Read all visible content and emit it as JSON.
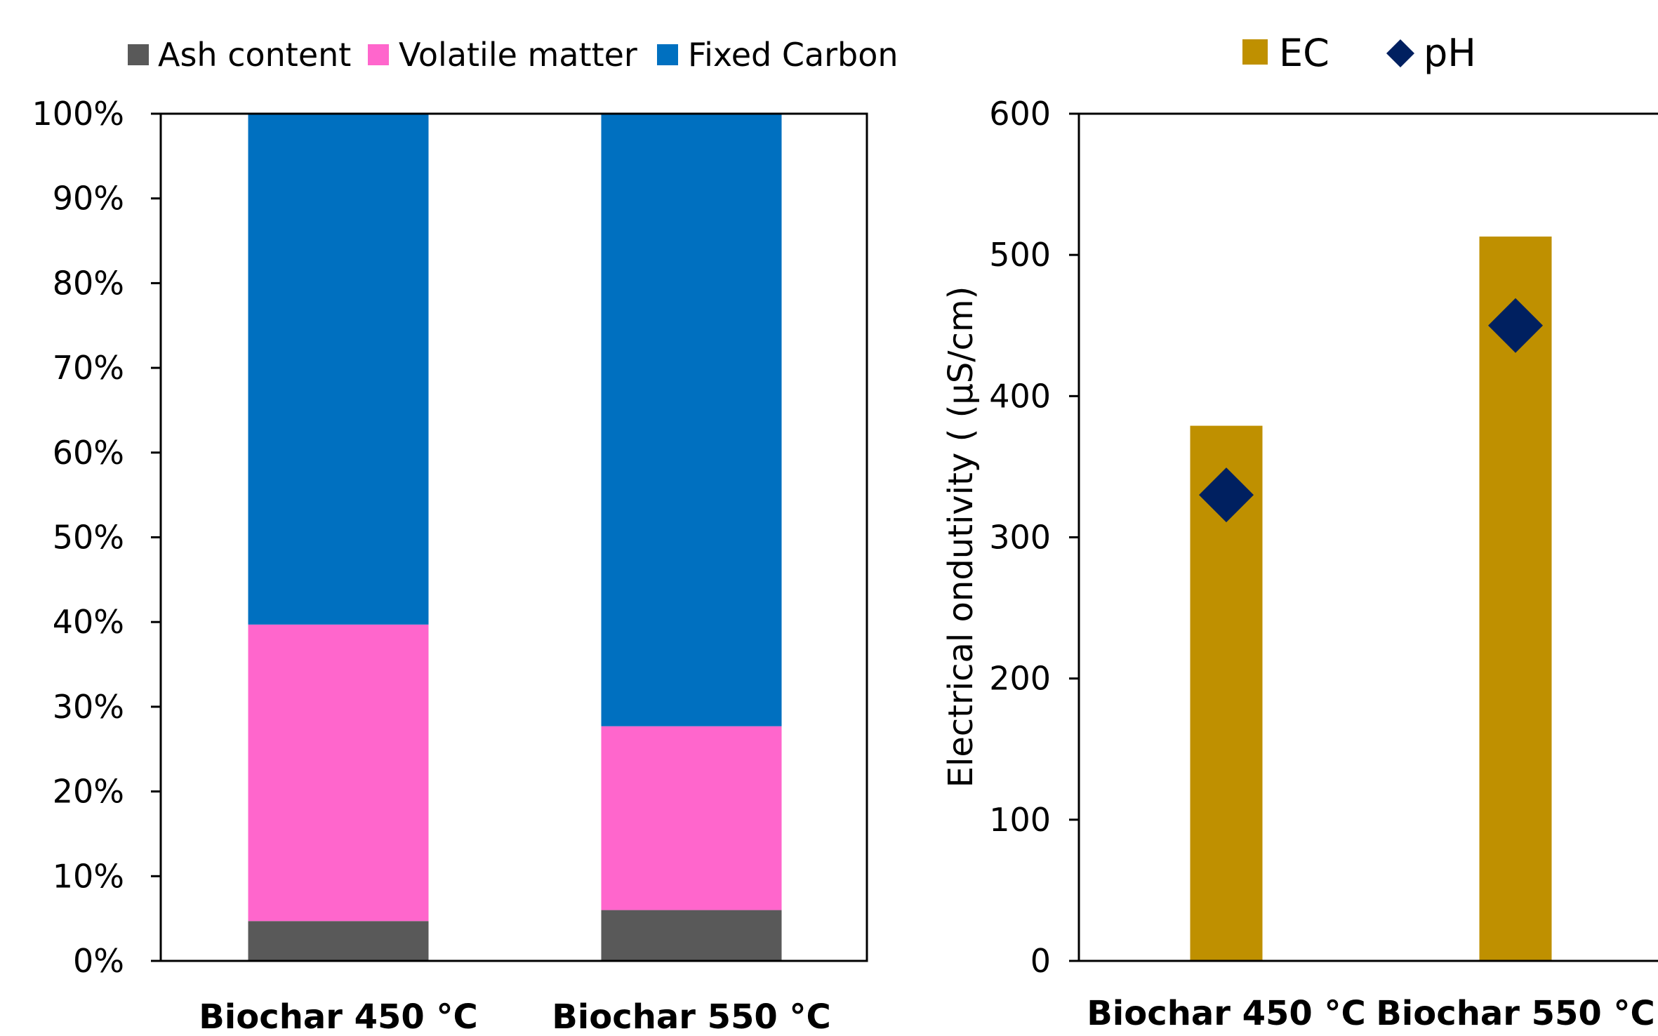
{
  "chart_data": [
    {
      "type": "bar",
      "stacked": true,
      "percent": true,
      "categories": [
        "Biochar 450  °C",
        "Biochar 550  °C"
      ],
      "series": [
        {
          "name": "Ash content",
          "values": [
            4.7,
            6.0
          ],
          "color": "#595959"
        },
        {
          "name": "Volatile matter",
          "values": [
            35.0,
            21.7
          ],
          "color": "#ff66cc"
        },
        {
          "name": "Fixed Carbon",
          "values": [
            60.3,
            72.3
          ],
          "color": "#0070c0"
        }
      ],
      "ylim": [
        0,
        100
      ],
      "yticks": [
        "0%",
        "10%",
        "20%",
        "30%",
        "40%",
        "50%",
        "60%",
        "70%",
        "80%",
        "90%",
        "100%"
      ],
      "xlabel": "",
      "ylabel": "",
      "legend": "top",
      "grid": false
    },
    {
      "type": "bar",
      "categories": [
        "Biochar 450 °C",
        "Biochar 550 °C"
      ],
      "series": [
        {
          "name": "EC",
          "kind": "bar",
          "values": [
            379,
            513
          ],
          "color": "#bf9000"
        },
        {
          "name": "pH",
          "kind": "marker",
          "marker": "diamond",
          "values": [
            330,
            450
          ],
          "color": "#002060"
        }
      ],
      "ylim": [
        0,
        600
      ],
      "yticks": [
        "0",
        "100",
        "200",
        "300",
        "400",
        "500",
        "600"
      ],
      "xlabel": "",
      "ylabel": "Electrical ondutivity ( (µS/cm)",
      "legend": "top",
      "grid": false
    }
  ]
}
